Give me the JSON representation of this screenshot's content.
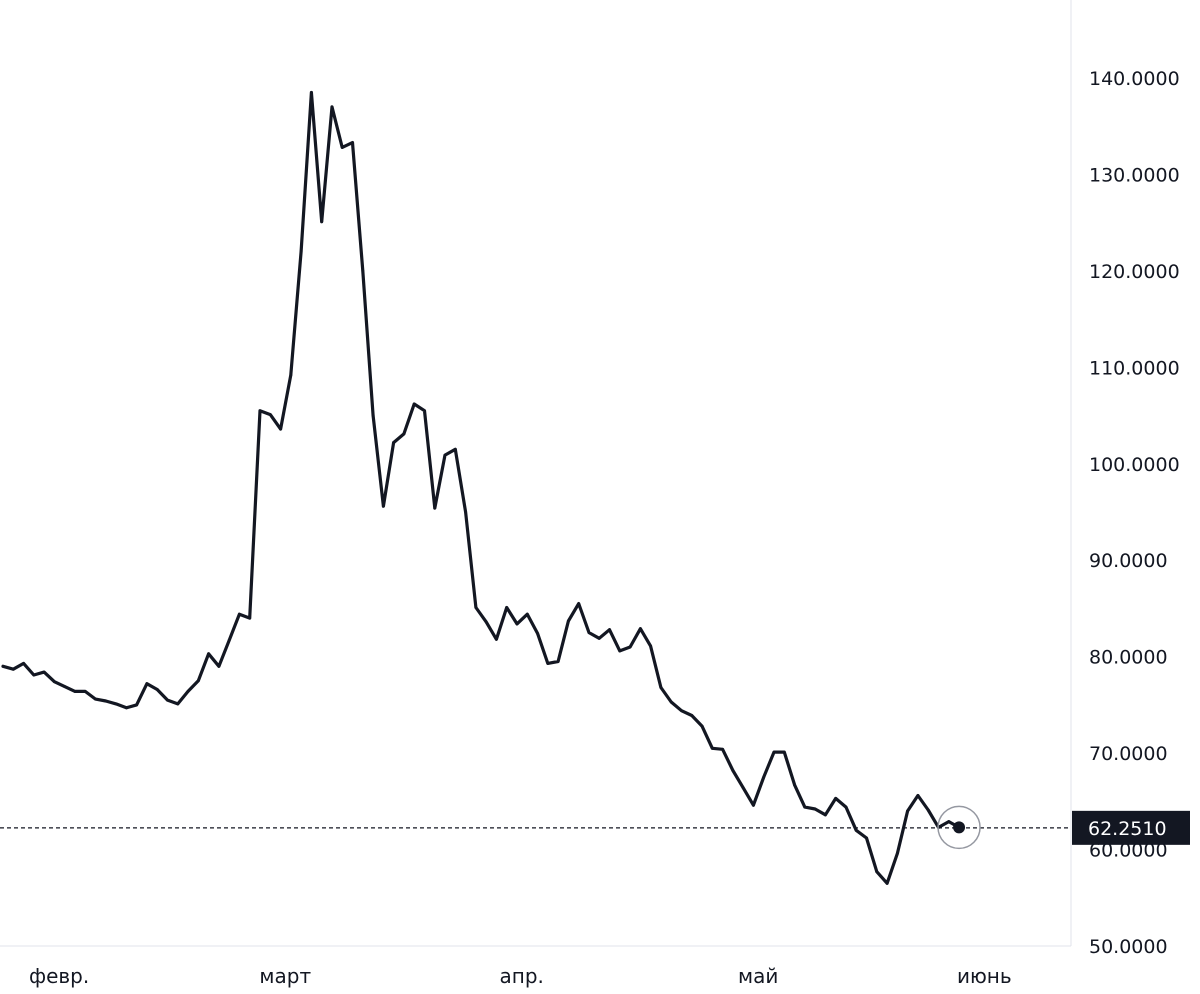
{
  "chart_data": {
    "type": "line",
    "title": "",
    "xlabel": "",
    "ylabel": "",
    "ylim": [
      50,
      140
    ],
    "y_ticks": [
      "140.0000",
      "130.0000",
      "120.0000",
      "110.0000",
      "100.0000",
      "90.0000",
      "80.0000",
      "70.0000",
      "60.0000",
      "50.0000"
    ],
    "y_tick_values": [
      140,
      130,
      120,
      110,
      100,
      90,
      80,
      70,
      60,
      50
    ],
    "x_ticks": [
      "февр.",
      "март",
      "апр.",
      "май",
      "июнь"
    ],
    "x_tick_indices": [
      4,
      26,
      49,
      72,
      94
    ],
    "grid": false,
    "legend": "none",
    "colors": {
      "line": "#131722",
      "axis_border": "#e0e3eb",
      "price_label_bg": "#131722",
      "marker_ring": "#9598a1"
    },
    "current_price": {
      "label": "62.2510",
      "value": 62.251
    },
    "series": [
      {
        "values": [
          79.0,
          78.7,
          79.3,
          78.1,
          78.4,
          77.4,
          76.9,
          76.4,
          76.4,
          75.6,
          75.4,
          75.1,
          74.7,
          75.0,
          77.2,
          76.6,
          75.5,
          75.1,
          76.4,
          77.5,
          80.3,
          79.0,
          81.7,
          84.4,
          84.0,
          105.5,
          105.1,
          103.6,
          109.2,
          122.0,
          138.5,
          125.1,
          137.0,
          132.8,
          133.3,
          120.0,
          105.0,
          95.6,
          102.2,
          103.1,
          106.2,
          105.5,
          95.4,
          100.9,
          101.5,
          95.0,
          85.1,
          83.6,
          81.8,
          85.1,
          83.4,
          84.4,
          82.4,
          79.3,
          79.5,
          83.7,
          85.5,
          82.5,
          81.9,
          82.8,
          80.6,
          81.0,
          82.9,
          81.1,
          76.8,
          75.3,
          74.4,
          73.9,
          72.8,
          70.5,
          70.4,
          68.2,
          66.4,
          64.6,
          67.5,
          70.1,
          70.1,
          66.7,
          64.4,
          64.2,
          63.6,
          65.3,
          64.4,
          62.0,
          61.2,
          57.7,
          56.5,
          59.6,
          64.0,
          65.6,
          64.1,
          62.3,
          62.9,
          62.3
        ]
      }
    ]
  }
}
